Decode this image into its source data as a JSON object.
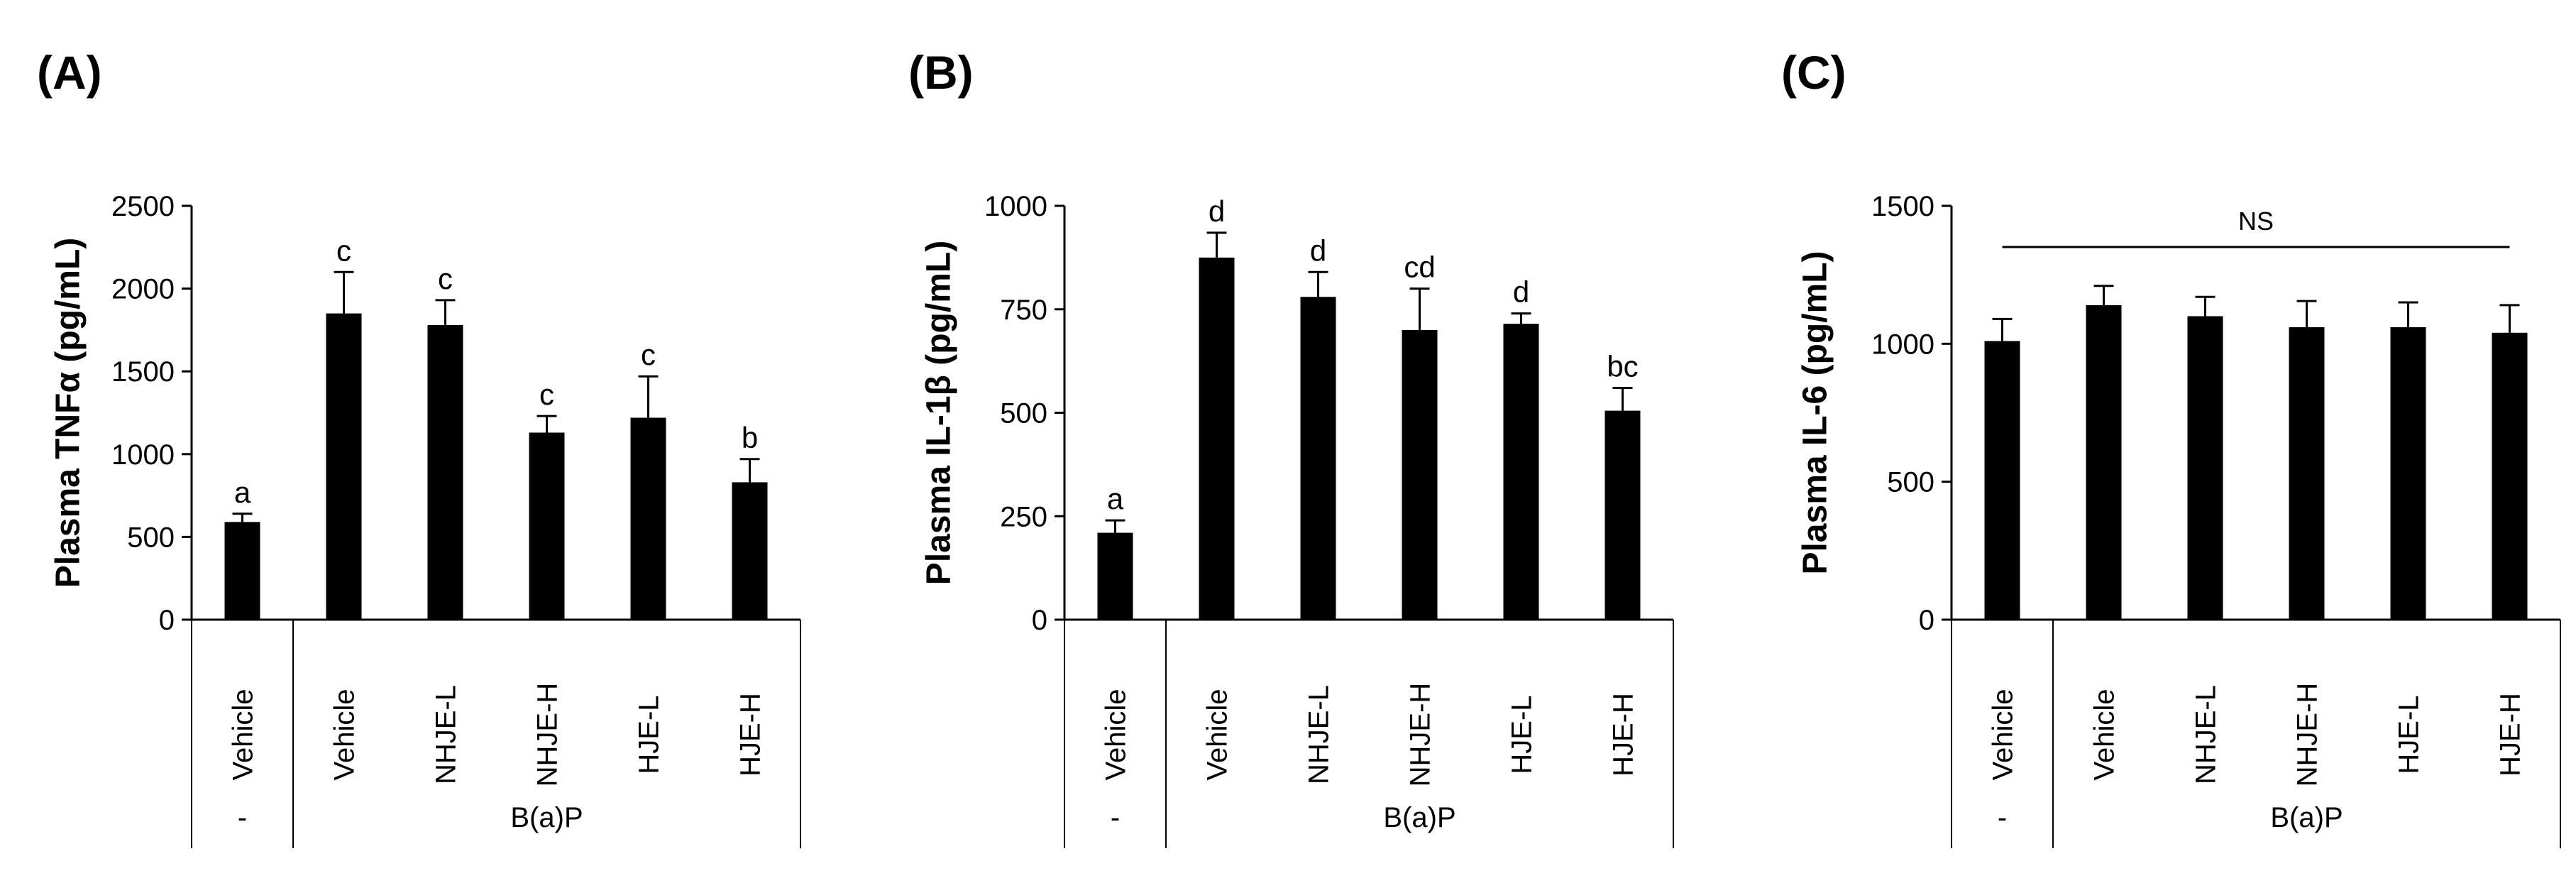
{
  "chart_data": [
    {
      "type": "bar",
      "panel": "(A)",
      "ylabel": "Plasma TNFα (pg/mL)",
      "ylim": [
        0,
        2500
      ],
      "yticks": [
        0,
        500,
        1000,
        1500,
        2000,
        2500
      ],
      "categories": [
        "Vehicle",
        "Vehicle",
        "NHJE-L",
        "NHJE-H",
        "HJE-L",
        "HJE-H"
      ],
      "groups": [
        {
          "label": "-",
          "span": 1
        },
        {
          "label": "B(a)P",
          "span": 5
        }
      ],
      "values": [
        590,
        1850,
        1780,
        1130,
        1220,
        830
      ],
      "errors": [
        50,
        250,
        150,
        100,
        250,
        140
      ],
      "significance": [
        "a",
        "c",
        "c",
        "c",
        "c",
        "b"
      ],
      "ns_label": ""
    },
    {
      "type": "bar",
      "panel": "(B)",
      "ylabel": "Plasma IL-1β (pg/mL)",
      "ylim": [
        0,
        1000
      ],
      "yticks": [
        0,
        250,
        500,
        750,
        1000
      ],
      "categories": [
        "Vehicle",
        "Vehicle",
        "NHJE-L",
        "NHJE-H",
        "HJE-L",
        "HJE-H"
      ],
      "groups": [
        {
          "label": "-",
          "span": 1
        },
        {
          "label": "B(a)P",
          "span": 5
        }
      ],
      "values": [
        210,
        875,
        780,
        700,
        715,
        505
      ],
      "errors": [
        30,
        60,
        60,
        100,
        25,
        55
      ],
      "significance": [
        "a",
        "d",
        "d",
        "cd",
        "d",
        "bc"
      ],
      "ns_label": ""
    },
    {
      "type": "bar",
      "panel": "(C)",
      "ylabel": "Plasma IL-6 (pg/mL)",
      "ylim": [
        0,
        1500
      ],
      "yticks": [
        0,
        500,
        1000,
        1500
      ],
      "categories": [
        "Vehicle",
        "Vehicle",
        "NHJE-L",
        "NHJE-H",
        "HJE-L",
        "HJE-H"
      ],
      "groups": [
        {
          "label": "-",
          "span": 1
        },
        {
          "label": "B(a)P",
          "span": 5
        }
      ],
      "values": [
        1010,
        1140,
        1100,
        1060,
        1060,
        1040
      ],
      "errors": [
        80,
        70,
        70,
        95,
        90,
        100
      ],
      "significance": [
        "",
        "",
        "",
        "",
        "",
        ""
      ],
      "ns_label": "NS"
    }
  ]
}
